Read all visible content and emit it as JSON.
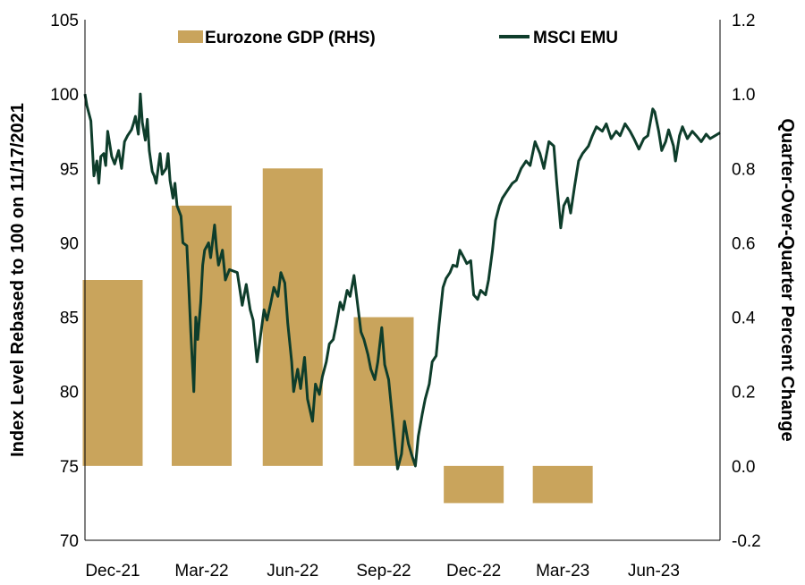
{
  "chart_data": {
    "type": "bar+line",
    "xlabel": "",
    "ylabel_left": "Index Level Rebased to 100 on 11/17/2021",
    "ylabel_right": "Quarter-Over-Quarter Percent Change",
    "ylim_left": [
      70,
      105
    ],
    "ylim_right": [
      -0.2,
      1.2
    ],
    "yticks_left": [
      "70",
      "75",
      "80",
      "85",
      "90",
      "95",
      "100",
      "105"
    ],
    "yticks_right": [
      "-0.2",
      "0.0",
      "0.2",
      "0.4",
      "0.6",
      "0.8",
      "1.0",
      "1.2"
    ],
    "xlim": [
      "2021-11-17",
      "2023-08-21"
    ],
    "x_ticks": [
      {
        "label": "Dec-21",
        "date": "2021-12-15"
      },
      {
        "label": "Mar-22",
        "date": "2022-03-15"
      },
      {
        "label": "Jun-22",
        "date": "2022-06-15"
      },
      {
        "label": "Sep-22",
        "date": "2022-09-15"
      },
      {
        "label": "Dec-22",
        "date": "2022-12-15"
      },
      {
        "label": "Mar-23",
        "date": "2023-03-15"
      },
      {
        "label": "Jun-23",
        "date": "2023-06-15"
      }
    ],
    "grid": false,
    "legend_position": "top",
    "legend": [
      {
        "label": "Eurozone GDP (RHS)",
        "kind": "bar",
        "color": "#C9A45C"
      },
      {
        "label": "MSCI EMU",
        "kind": "line",
        "color": "#0E3D2B"
      }
    ],
    "bars": {
      "name": "Eurozone GDP (RHS)",
      "color": "#C9A45C",
      "axis": "right",
      "categories": [
        "Dec-21",
        "Mar-22",
        "Jun-22",
        "Sep-22",
        "Dec-22",
        "Mar-23"
      ],
      "values": [
        0.5,
        0.7,
        0.8,
        0.4,
        -0.1,
        -0.1
      ]
    },
    "line": {
      "name": "MSCI EMU",
      "color": "#0E3D2B",
      "axis": "left",
      "points": [
        [
          "2021-11-17",
          100
        ],
        [
          "2021-11-19",
          99.2
        ],
        [
          "2021-11-23",
          98.2
        ],
        [
          "2021-11-26",
          94.5
        ],
        [
          "2021-11-29",
          95.5
        ],
        [
          "2021-12-01",
          94.0
        ],
        [
          "2021-12-03",
          95.8
        ],
        [
          "2021-12-06",
          96.0
        ],
        [
          "2021-12-08",
          95.2
        ],
        [
          "2021-12-10",
          97.5
        ],
        [
          "2021-12-14",
          95.8
        ],
        [
          "2021-12-17",
          95.3
        ],
        [
          "2021-12-21",
          96.2
        ],
        [
          "2021-12-24",
          95.0
        ],
        [
          "2021-12-27",
          96.8
        ],
        [
          "2021-12-30",
          97.2
        ],
        [
          "2022-01-03",
          97.6
        ],
        [
          "2022-01-05",
          98.0
        ],
        [
          "2022-01-07",
          98.5
        ],
        [
          "2022-01-10",
          97.3
        ],
        [
          "2022-01-12",
          100.0
        ],
        [
          "2022-01-14",
          98.1
        ],
        [
          "2022-01-17",
          96.9
        ],
        [
          "2022-01-19",
          98.3
        ],
        [
          "2022-01-21",
          96.2
        ],
        [
          "2022-01-24",
          94.8
        ],
        [
          "2022-01-26",
          94.5
        ],
        [
          "2022-01-28",
          94.0
        ],
        [
          "2022-02-01",
          96.0
        ],
        [
          "2022-02-03",
          94.6
        ],
        [
          "2022-02-07",
          95.0
        ],
        [
          "2022-02-09",
          96.0
        ],
        [
          "2022-02-11",
          94.2
        ],
        [
          "2022-02-14",
          93.0
        ],
        [
          "2022-02-16",
          94.0
        ],
        [
          "2022-02-18",
          92.5
        ],
        [
          "2022-02-22",
          91.8
        ],
        [
          "2022-02-24",
          90.0
        ],
        [
          "2022-02-28",
          89.8
        ],
        [
          "2022-03-02",
          87.0
        ],
        [
          "2022-03-04",
          84.0
        ],
        [
          "2022-03-07",
          80.0
        ],
        [
          "2022-03-09",
          85.0
        ],
        [
          "2022-03-11",
          83.5
        ],
        [
          "2022-03-14",
          86.0
        ],
        [
          "2022-03-16",
          88.5
        ],
        [
          "2022-03-18",
          89.5
        ],
        [
          "2022-03-22",
          90.0
        ],
        [
          "2022-03-24",
          89.0
        ],
        [
          "2022-03-28",
          91.2
        ],
        [
          "2022-03-30",
          89.6
        ],
        [
          "2022-04-01",
          88.5
        ],
        [
          "2022-04-05",
          89.5
        ],
        [
          "2022-04-08",
          87.5
        ],
        [
          "2022-04-12",
          88.2
        ],
        [
          "2022-04-20",
          88.0
        ],
        [
          "2022-04-25",
          85.8
        ],
        [
          "2022-04-29",
          87.2
        ],
        [
          "2022-05-03",
          85.5
        ],
        [
          "2022-05-06",
          84.8
        ],
        [
          "2022-05-10",
          82.0
        ],
        [
          "2022-05-13",
          83.5
        ],
        [
          "2022-05-17",
          85.5
        ],
        [
          "2022-05-20",
          84.8
        ],
        [
          "2022-05-24",
          86.0
        ],
        [
          "2022-05-27",
          87.0
        ],
        [
          "2022-05-31",
          86.4
        ],
        [
          "2022-06-03",
          88.0
        ],
        [
          "2022-06-07",
          87.3
        ],
        [
          "2022-06-10",
          84.6
        ],
        [
          "2022-06-14",
          82.0
        ],
        [
          "2022-06-16",
          80.0
        ],
        [
          "2022-06-20",
          81.5
        ],
        [
          "2022-06-23",
          80.2
        ],
        [
          "2022-06-27",
          82.3
        ],
        [
          "2022-06-30",
          79.5
        ],
        [
          "2022-07-05",
          78.0
        ],
        [
          "2022-07-08",
          80.5
        ],
        [
          "2022-07-12",
          79.8
        ],
        [
          "2022-07-15",
          81.0
        ],
        [
          "2022-07-19",
          82.0
        ],
        [
          "2022-07-22",
          83.2
        ],
        [
          "2022-07-26",
          83.5
        ],
        [
          "2022-07-29",
          84.5
        ],
        [
          "2022-08-02",
          86.0
        ],
        [
          "2022-08-05",
          85.5
        ],
        [
          "2022-08-09",
          86.8
        ],
        [
          "2022-08-12",
          86.4
        ],
        [
          "2022-08-16",
          87.8
        ],
        [
          "2022-08-19",
          86.2
        ],
        [
          "2022-08-23",
          84.0
        ],
        [
          "2022-08-26",
          83.5
        ],
        [
          "2022-08-30",
          82.5
        ],
        [
          "2022-09-02",
          81.5
        ],
        [
          "2022-09-06",
          80.8
        ],
        [
          "2022-09-09",
          82.0
        ],
        [
          "2022-09-13",
          84.3
        ],
        [
          "2022-09-16",
          81.8
        ],
        [
          "2022-09-20",
          80.8
        ],
        [
          "2022-09-23",
          78.8
        ],
        [
          "2022-09-27",
          76.0
        ],
        [
          "2022-09-29",
          74.8
        ],
        [
          "2022-10-03",
          75.8
        ],
        [
          "2022-10-06",
          78.0
        ],
        [
          "2022-10-10",
          76.5
        ],
        [
          "2022-10-13",
          75.8
        ],
        [
          "2022-10-17",
          75.0
        ],
        [
          "2022-10-20",
          77.0
        ],
        [
          "2022-10-24",
          78.5
        ],
        [
          "2022-10-27",
          79.5
        ],
        [
          "2022-10-31",
          80.5
        ],
        [
          "2022-11-03",
          82.0
        ],
        [
          "2022-11-07",
          82.4
        ],
        [
          "2022-11-10",
          84.5
        ],
        [
          "2022-11-14",
          87.0
        ],
        [
          "2022-11-17",
          87.6
        ],
        [
          "2022-11-21",
          88.0
        ],
        [
          "2022-11-24",
          88.5
        ],
        [
          "2022-11-28",
          88.4
        ],
        [
          "2022-12-01",
          89.5
        ],
        [
          "2022-12-05",
          89.0
        ],
        [
          "2022-12-08",
          88.6
        ],
        [
          "2022-12-12",
          88.8
        ],
        [
          "2022-12-15",
          86.5
        ],
        [
          "2022-12-19",
          86.2
        ],
        [
          "2022-12-22",
          86.8
        ],
        [
          "2022-12-27",
          86.5
        ],
        [
          "2022-12-30",
          87.5
        ],
        [
          "2023-01-03",
          89.5
        ],
        [
          "2023-01-06",
          91.5
        ],
        [
          "2023-01-10",
          92.5
        ],
        [
          "2023-01-13",
          93.0
        ],
        [
          "2023-01-18",
          93.5
        ],
        [
          "2023-01-23",
          94.0
        ],
        [
          "2023-01-27",
          94.2
        ],
        [
          "2023-02-01",
          95.0
        ],
        [
          "2023-02-06",
          95.5
        ],
        [
          "2023-02-10",
          95.2
        ],
        [
          "2023-02-15",
          96.8
        ],
        [
          "2023-02-20",
          96.0
        ],
        [
          "2023-02-24",
          95.0
        ],
        [
          "2023-03-01",
          96.8
        ],
        [
          "2023-03-06",
          96.5
        ],
        [
          "2023-03-09",
          94.0
        ],
        [
          "2023-03-13",
          91.0
        ],
        [
          "2023-03-16",
          92.5
        ],
        [
          "2023-03-20",
          93.0
        ],
        [
          "2023-03-23",
          92.0
        ],
        [
          "2023-03-27",
          93.8
        ],
        [
          "2023-03-31",
          95.5
        ],
        [
          "2023-04-04",
          96.0
        ],
        [
          "2023-04-10",
          96.5
        ],
        [
          "2023-04-14",
          97.2
        ],
        [
          "2023-04-18",
          97.8
        ],
        [
          "2023-04-24",
          97.5
        ],
        [
          "2023-04-28",
          98.0
        ],
        [
          "2023-05-03",
          97.0
        ],
        [
          "2023-05-08",
          97.5
        ],
        [
          "2023-05-12",
          97.2
        ],
        [
          "2023-05-17",
          98.0
        ],
        [
          "2023-05-22",
          97.5
        ],
        [
          "2023-05-26",
          97.0
        ],
        [
          "2023-05-31",
          96.3
        ],
        [
          "2023-06-05",
          97.0
        ],
        [
          "2023-06-09",
          97.2
        ],
        [
          "2023-06-14",
          99.0
        ],
        [
          "2023-06-16",
          98.8
        ],
        [
          "2023-06-20",
          97.5
        ],
        [
          "2023-06-23",
          96.2
        ],
        [
          "2023-06-27",
          96.8
        ],
        [
          "2023-06-30",
          97.6
        ],
        [
          "2023-07-05",
          96.5
        ],
        [
          "2023-07-07",
          95.5
        ],
        [
          "2023-07-11",
          97.2
        ],
        [
          "2023-07-14",
          97.8
        ],
        [
          "2023-07-19",
          97.0
        ],
        [
          "2023-07-24",
          97.5
        ],
        [
          "2023-07-28",
          97.2
        ],
        [
          "2023-08-02",
          96.8
        ],
        [
          "2023-08-07",
          97.3
        ],
        [
          "2023-08-11",
          97.0
        ],
        [
          "2023-08-16",
          97.2
        ],
        [
          "2023-08-21",
          97.4
        ]
      ]
    }
  }
}
